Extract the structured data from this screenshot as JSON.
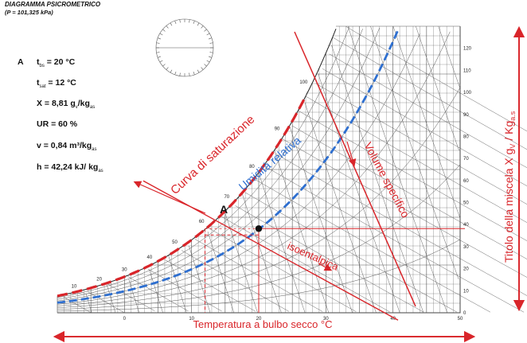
{
  "header": {
    "title": "DIAGRAMMA PSICROMETRICO",
    "subtitle": "(P = 101,325 kPa)"
  },
  "point_label": "A",
  "properties": [
    {
      "name": "t",
      "sub": "bs",
      "value": " = 20 °C"
    },
    {
      "name": "t",
      "sub": "sat",
      "value": " = 12 °C"
    },
    {
      "name": "X = 8,81 g",
      "sub": "v",
      "value": "/kg",
      "sub2": "as"
    },
    {
      "name": "UR = 60 %",
      "sub": "",
      "value": ""
    },
    {
      "name": "v = 0,84 m³/kg",
      "sub": "as",
      "value": ""
    },
    {
      "name": "h = 42,24 kJ/ kg",
      "sub": "as",
      "value": ""
    }
  ],
  "annotations": {
    "saturation": "Curva di saturazione",
    "relative_humidity": "Umidità relativa",
    "specific_volume": "Volume specifico",
    "isenthalpic": "isoentalpica",
    "x_axis": "Temperatura a bulbo secco °C",
    "y_axis": "Titolo della miscela X   g",
    "y_axis_sub1": "V",
    "y_axis_mid": " / Kg",
    "y_axis_sub2": "a.s"
  },
  "colors": {
    "red": "#d9252a",
    "blue": "#2e6fd0",
    "grid": "#555555"
  },
  "chart_data": {
    "type": "psychrometric",
    "pressure_kPa": 101.325,
    "x_ticks": [
      "0",
      "10",
      "20",
      "30",
      "40",
      "50"
    ],
    "x_range": [
      -10,
      50
    ],
    "y_ticks": [
      "0",
      "10",
      "20",
      "30",
      "40",
      "50",
      "60",
      "70",
      "80",
      "90",
      "100",
      "110",
      "120"
    ],
    "x_tick_values": [
      0,
      10,
      20,
      30,
      40,
      50
    ],
    "y_tick_values": [
      0,
      10,
      20,
      30,
      40,
      50,
      60,
      70,
      80,
      90,
      100,
      110,
      120
    ],
    "enthalpy_labels": [
      "10",
      "20",
      "30",
      "40",
      "50",
      "60",
      "70",
      "80",
      "90",
      "100"
    ],
    "point_A": {
      "t_bs": 20,
      "t_sat": 12,
      "X": 8.81,
      "UR": 60,
      "v": 0.84,
      "h": 42.24
    },
    "rh_curve_percent": 60
  }
}
